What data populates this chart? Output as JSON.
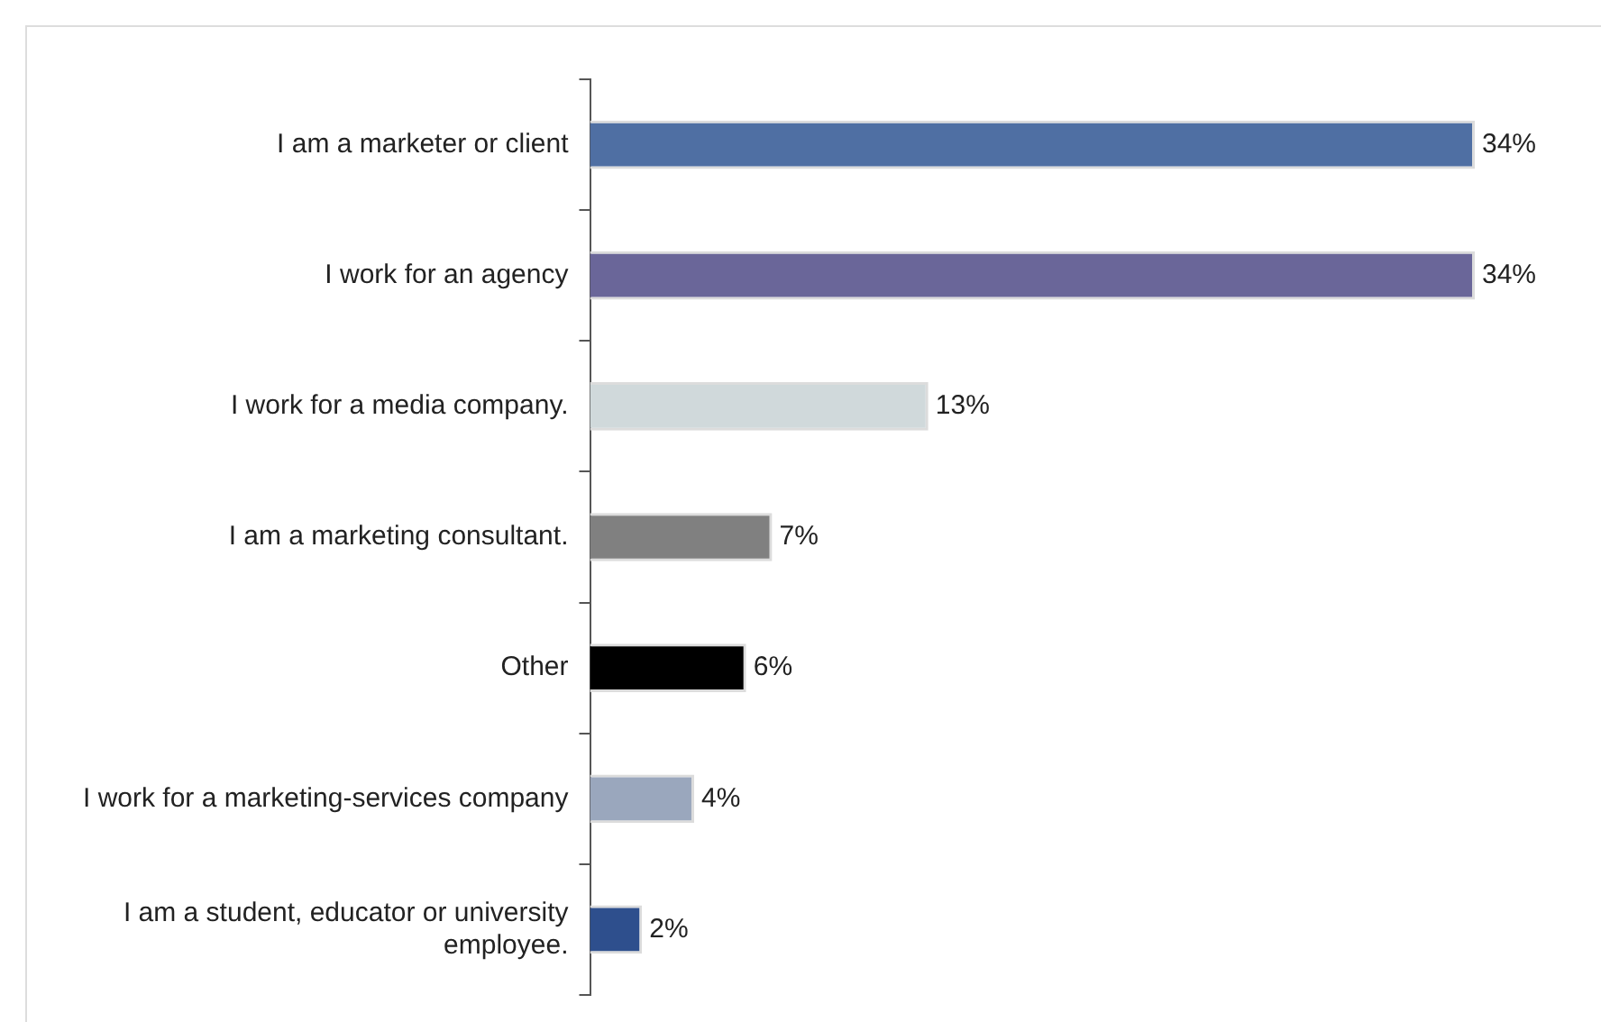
{
  "chart_data": {
    "type": "bar",
    "orientation": "horizontal",
    "categories": [
      "I am a marketer or client",
      "I work for an agency",
      "I work for a media company.",
      "I am a marketing consultant.",
      "Other",
      "I work for a marketing-services company",
      "I am a student, educator or university employee."
    ],
    "values": [
      34,
      34,
      13,
      7,
      6,
      4,
      2
    ],
    "colors": [
      "#4f6fa3",
      "#6a6699",
      "#d0d9db",
      "#808080",
      "#000000",
      "#9aa7bd",
      "#2e4f8d"
    ],
    "data_labels": true,
    "value_labels": [
      "34%",
      "34%",
      "13%",
      "7%",
      "6%",
      "4%",
      "2%"
    ],
    "legend": false
  }
}
